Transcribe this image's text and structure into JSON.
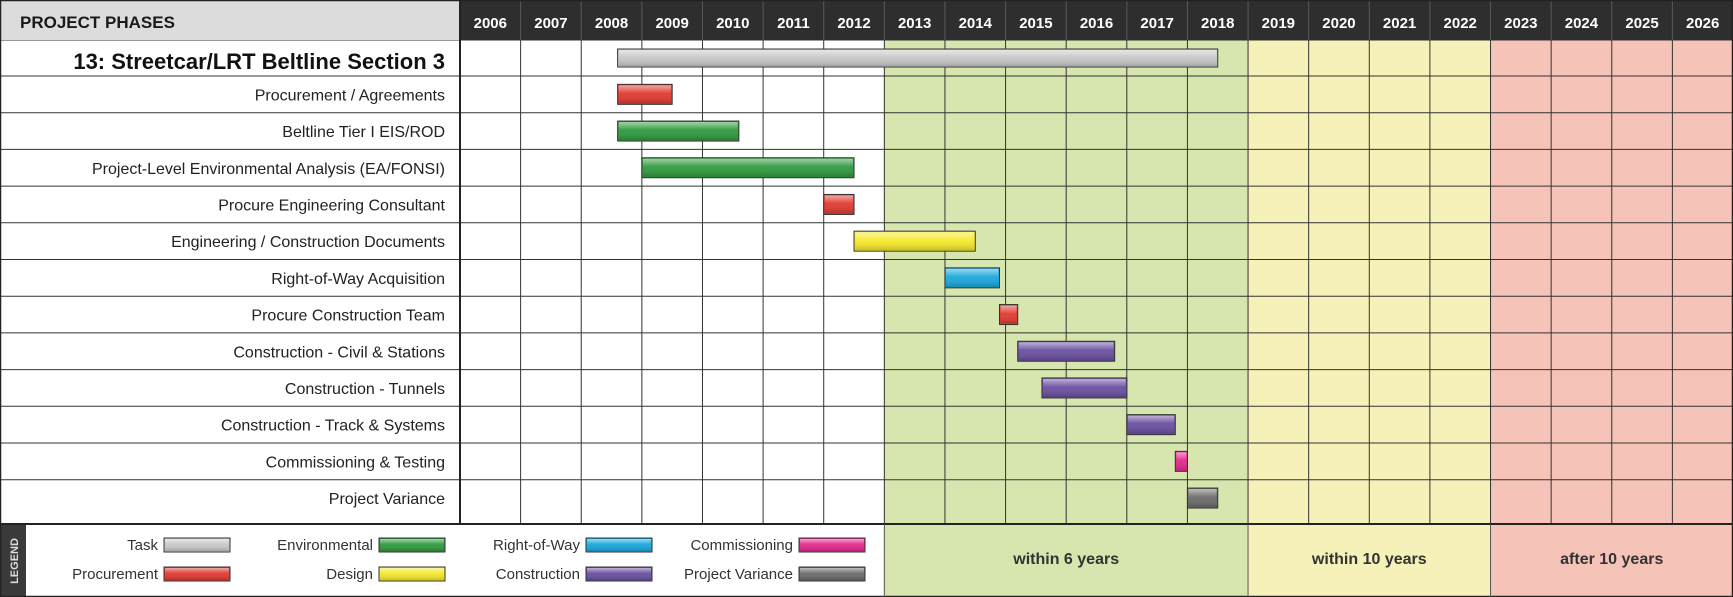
{
  "header": {
    "label": "PROJECT PHASES"
  },
  "project": {
    "title": "13:  Streetcar/LRT Beltline Section 3"
  },
  "legend": {
    "vertical_label": "LEGEND",
    "items": [
      {
        "label": "Task",
        "color": "#c8c8c8"
      },
      {
        "label": "Procurement",
        "color": "#e03a30"
      },
      {
        "label": "Environmental",
        "color": "#2f9a3e"
      },
      {
        "label": "Design",
        "color": "#f5e92a"
      },
      {
        "label": "Right-of-Way",
        "color": "#1aa7dc"
      },
      {
        "label": "Construction",
        "color": "#6a4fa0"
      },
      {
        "label": "Commissioning",
        "color": "#e3298e"
      },
      {
        "label": "Project Variance",
        "color": "#6b6b6b"
      }
    ]
  },
  "zones": [
    {
      "label": "within 6 years",
      "from": 2013,
      "to": 2019,
      "color": "#d6e6ae"
    },
    {
      "label": "within 10 years",
      "from": 2019,
      "to": 2023,
      "color": "#f6f1b8"
    },
    {
      "label": "after 10 years",
      "from": 2023,
      "to": 2027,
      "color": "#f6c3b8"
    }
  ],
  "chart_data": {
    "type": "gantt",
    "years": [
      "2006",
      "2007",
      "2008",
      "2009",
      "2010",
      "2011",
      "2012",
      "2013",
      "2014",
      "2015",
      "2016",
      "2017",
      "2018",
      "2019",
      "2020",
      "2021",
      "2022",
      "2023",
      "2024",
      "2025",
      "2026"
    ],
    "xlim": [
      2006,
      2027
    ],
    "tasks": [
      {
        "name": "13:  Streetcar/LRT Beltline Section 3",
        "category": "Task",
        "start": 2008.6,
        "end": 2018.5
      },
      {
        "name": "Procurement / Agreements",
        "category": "Procurement",
        "start": 2008.6,
        "end": 2009.5
      },
      {
        "name": "Beltline Tier I EIS/ROD",
        "category": "Environmental",
        "start": 2008.6,
        "end": 2010.6
      },
      {
        "name": "Project-Level Environmental Analysis (EA/FONSI)",
        "category": "Environmental",
        "start": 2009.0,
        "end": 2012.5
      },
      {
        "name": "Procure Engineering Consultant",
        "category": "Procurement",
        "start": 2012.0,
        "end": 2012.5
      },
      {
        "name": "Engineering / Construction Documents",
        "category": "Design",
        "start": 2012.5,
        "end": 2014.5
      },
      {
        "name": "Right-of-Way Acquisition",
        "category": "Right-of-Way",
        "start": 2014.0,
        "end": 2014.9
      },
      {
        "name": "Procure Construction Team",
        "category": "Procurement",
        "start": 2014.9,
        "end": 2015.2
      },
      {
        "name": "Construction - Civil & Stations",
        "category": "Construction",
        "start": 2015.2,
        "end": 2016.8
      },
      {
        "name": "Construction - Tunnels",
        "category": "Construction",
        "start": 2015.6,
        "end": 2017.0
      },
      {
        "name": "Construction - Track & Systems",
        "category": "Construction",
        "start": 2017.0,
        "end": 2017.8
      },
      {
        "name": "Commissioning & Testing",
        "category": "Commissioning",
        "start": 2017.8,
        "end": 2018.0
      },
      {
        "name": "Project Variance",
        "category": "Project Variance",
        "start": 2018.0,
        "end": 2018.5
      }
    ]
  }
}
